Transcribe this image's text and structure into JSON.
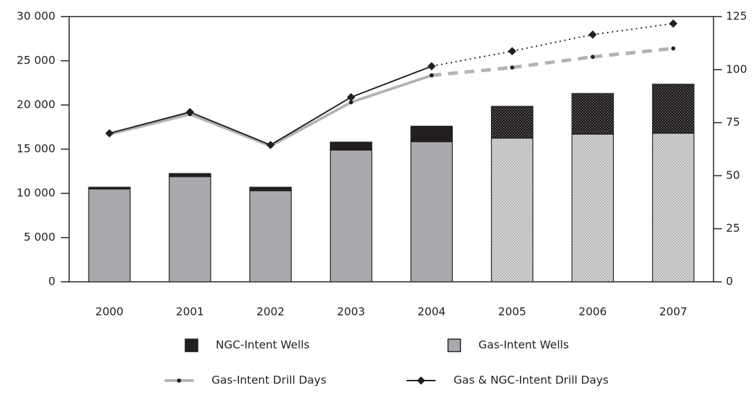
{
  "chart_data": {
    "type": "bar-line",
    "categories": [
      "2000",
      "2001",
      "2002",
      "2003",
      "2004",
      "2005",
      "2006",
      "2007"
    ],
    "forecast_from": "2005",
    "series": [
      {
        "name": "NGC-Intent Wells",
        "type": "bar",
        "color": "#231f20",
        "values": [
          200,
          350,
          400,
          900,
          1750,
          3600,
          4600,
          5550
        ]
      },
      {
        "name": "Gas-Intent Wells",
        "type": "bar",
        "color": "#a7a9ac",
        "values": [
          10500,
          11900,
          10300,
          14900,
          15850,
          16250,
          16700,
          16800
        ]
      },
      {
        "name": "Gas-Intent Drill Days",
        "type": "line",
        "axis": "y2",
        "color": "#b3b3b3",
        "values": [
          69.5,
          79,
          64,
          84.6,
          97.3,
          101,
          106,
          110
        ]
      },
      {
        "name": "Gas & NGC-Intent Drill Days",
        "type": "line",
        "axis": "y2",
        "color": "#231f20",
        "values": [
          70,
          80,
          64.5,
          87,
          101.6,
          108.7,
          116.5,
          121.7
        ]
      }
    ],
    "ylim": [
      0,
      30000
    ],
    "yticks": [
      0,
      {
        "value": 5000,
        "label": "5 000"
      },
      {
        "value": 10000,
        "label": "10 000"
      },
      {
        "value": 15000,
        "label": "15 000"
      },
      {
        "value": 20000,
        "label": "20 000"
      },
      {
        "value": 25000,
        "label": "25 000"
      },
      {
        "value": 30000,
        "label": "30 000"
      }
    ],
    "y2lim": [
      0,
      125
    ],
    "y2ticks": [
      0,
      25,
      50,
      75,
      100,
      125
    ]
  }
}
